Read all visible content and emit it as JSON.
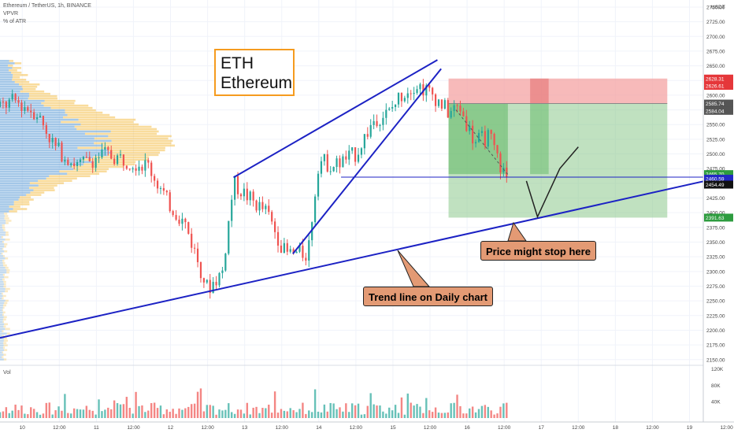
{
  "header": {
    "symbol_line": "Ethereum / TetherUS, 1h, BINANCE",
    "indicator1": "VPVR",
    "indicator2": "% of ATR",
    "volume_label": "Vol"
  },
  "annotations": {
    "eth_line1": "ETH",
    "eth_line2": "Ethereum",
    "price_stop": "Price might stop here",
    "trend_line": "Trend line on Daily chart"
  },
  "colors": {
    "up": "#26a69a",
    "down": "#ef5350",
    "trend_line": "#1c22c4",
    "stop_zone": "#f4a3a3",
    "target_zone": "#8cc98c",
    "callout": "#e39a74",
    "eth_border": "#f59b1f"
  },
  "chart_data": {
    "type": "candlestick",
    "x_ticks": [
      "10",
      "12:00",
      "11",
      "12:00",
      "12",
      "12:00",
      "13",
      "12:00",
      "14",
      "12:00",
      "15",
      "12:00",
      "16",
      "12:00",
      "17",
      "12:00",
      "18",
      "12:00",
      "19",
      "12:00"
    ],
    "currency_unit": "USDT",
    "y_ticks": [
      2150,
      2175,
      2200,
      2225,
      2250,
      2275,
      2300,
      2325,
      2350,
      2375,
      2400,
      2425,
      2450,
      2475,
      2500,
      2525,
      2550,
      2575,
      2600,
      2625,
      2650,
      2675,
      2700,
      2725,
      2750
    ],
    "y_tick_labels": [
      "2150.00",
      "2175.00",
      "2200.00",
      "2225.00",
      "2250.00",
      "2275.00",
      "2300.00",
      "2325.00",
      "2350.00",
      "2375.00",
      "2400.00",
      "2425.00",
      "2450.00",
      "2475.00",
      "2500.00",
      "2525.00",
      "2550.00",
      "2575.00",
      "2600.00",
      "2625.00",
      "2650.00",
      "2675.00",
      "2700.00",
      "2725.00",
      "2750.00"
    ],
    "y_range": [
      2143,
      2762
    ],
    "day_range": [
      9.7,
      19.6
    ],
    "price_labels": [
      {
        "value": 2628.31,
        "text": "2628.31",
        "color": "#e5373a"
      },
      {
        "value": 2626.61,
        "text": "2626.61",
        "color": "#e5373a"
      },
      {
        "value": 2585.74,
        "text": "2585.74",
        "color": "#555555"
      },
      {
        "value": 2584.04,
        "text": "2584.04",
        "color": "#555555"
      },
      {
        "value": 2465.7,
        "text": "2465.70",
        "color": "#2e9c3f"
      },
      {
        "value": 2460.59,
        "text": "2460.59",
        "color": "#2328c4"
      },
      {
        "value": 2454.49,
        "text": "2454.49",
        "color": "#111111"
      },
      {
        "value": 2391.63,
        "text": "2391.63",
        "color": "#2e9c3f"
      }
    ],
    "candle_path_anchors": [
      [
        9.7,
        2580
      ],
      [
        9.9,
        2590
      ],
      [
        10.2,
        2570
      ],
      [
        10.45,
        2510
      ],
      [
        10.75,
        2480
      ],
      [
        11.1,
        2500
      ],
      [
        11.4,
        2490
      ],
      [
        11.7,
        2480
      ],
      [
        11.95,
        2420
      ],
      [
        12.2,
        2380
      ],
      [
        12.5,
        2270
      ],
      [
        12.7,
        2300
      ],
      [
        12.85,
        2450
      ],
      [
        13.1,
        2420
      ],
      [
        13.3,
        2400
      ],
      [
        13.55,
        2330
      ],
      [
        13.85,
        2330
      ],
      [
        14.0,
        2490
      ],
      [
        14.2,
        2480
      ],
      [
        14.5,
        2500
      ],
      [
        14.75,
        2560
      ],
      [
        14.95,
        2570
      ],
      [
        15.1,
        2600
      ],
      [
        15.3,
        2620
      ],
      [
        15.55,
        2600
      ],
      [
        15.75,
        2570
      ],
      [
        15.9,
        2580
      ],
      [
        16.1,
        2520
      ],
      [
        16.3,
        2530
      ],
      [
        16.45,
        2480
      ],
      [
        16.55,
        2454
      ]
    ],
    "trend_lines": [
      {
        "name": "daily-trend",
        "from": [
          9.7,
          2187
        ],
        "to": [
          19.6,
          2465
        ]
      },
      {
        "name": "wedge-upper",
        "from": [
          12.85,
          2460
        ],
        "to": [
          15.6,
          2660
        ]
      },
      {
        "name": "wedge-lower",
        "from": [
          13.65,
          2330
        ],
        "to": [
          15.65,
          2645
        ]
      },
      {
        "name": "horizontal-support",
        "from": [
          14.3,
          2460.59
        ],
        "to": [
          19.6,
          2460.59
        ]
      }
    ],
    "position_tool": {
      "start_day": 15.75,
      "end_day": 18.7,
      "stop_top": 2628.31,
      "entry": 2585.74,
      "target_bottom": 2391.63,
      "dark_profit_to": 2465.7
    },
    "projection_path": [
      [
        16.8,
        2454
      ],
      [
        16.95,
        2393
      ],
      [
        17.25,
        2475
      ],
      [
        17.5,
        2512
      ]
    ],
    "volume_ticks": [
      "40K",
      "80K",
      "120K"
    ]
  }
}
